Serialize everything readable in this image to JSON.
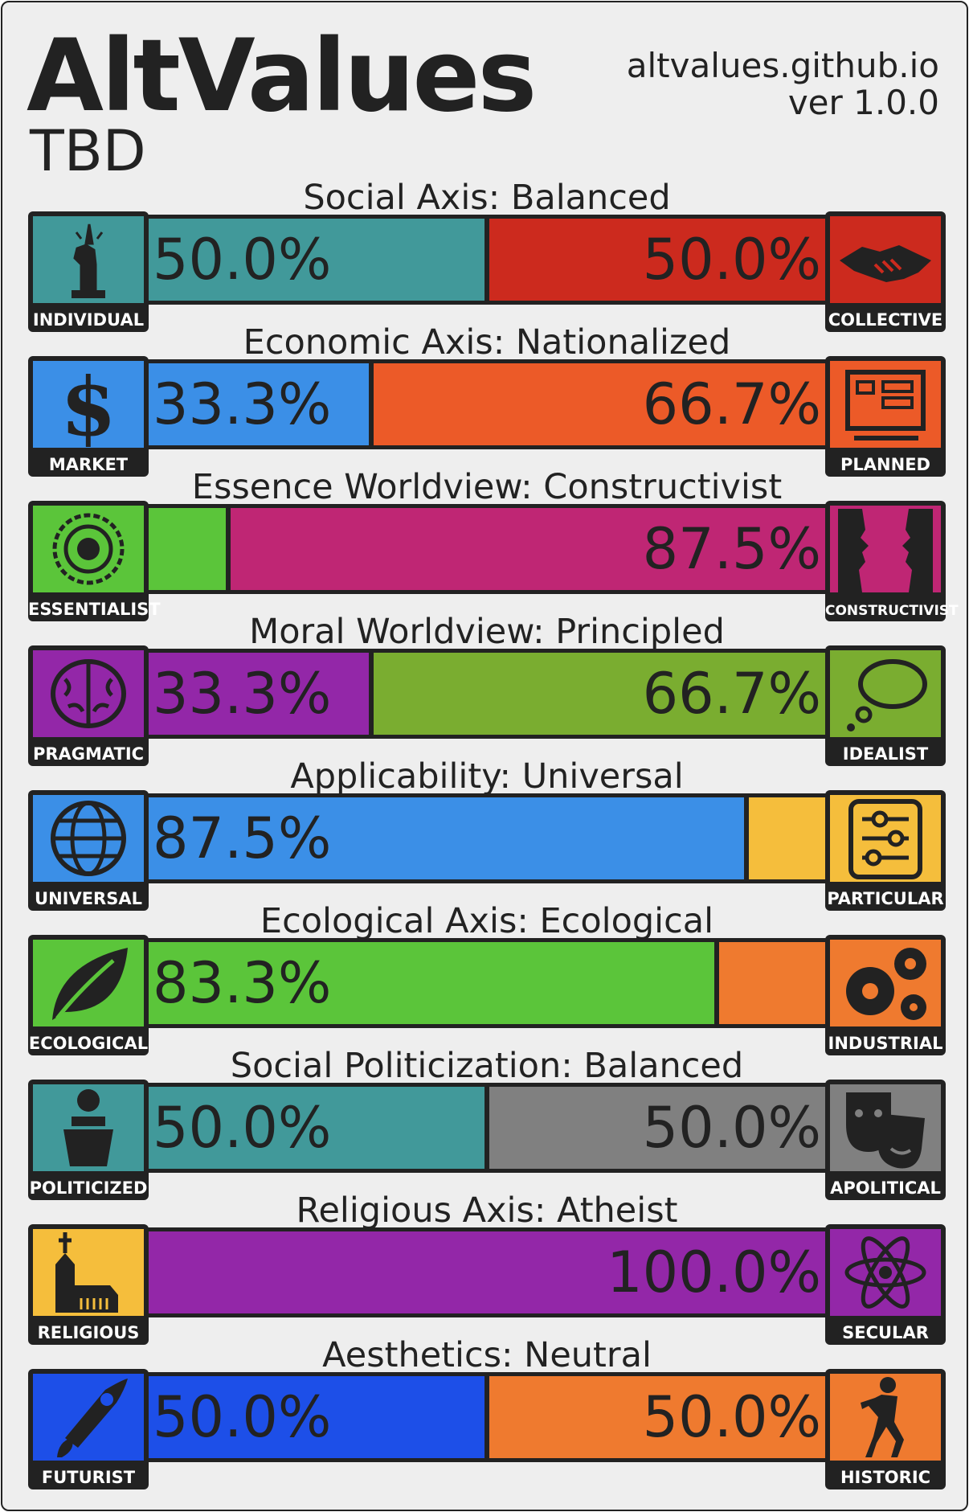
{
  "header": {
    "title": "AltValues",
    "subtitle": "TBD",
    "site": "altvalues.github.io",
    "version": "ver 1.0.0"
  },
  "chart_data": {
    "type": "bar",
    "axes": [
      {
        "label": "Social Axis: Balanced",
        "left": {
          "name": "INDIVIDUAL",
          "value": 50.0,
          "text": "50.0%",
          "color": "#41999a",
          "icon": "statue-of-liberty-icon"
        },
        "right": {
          "name": "COLLECTIVE",
          "value": 50.0,
          "text": "50.0%",
          "color": "#cc2a1e",
          "icon": "handshake-icon"
        }
      },
      {
        "label": "Economic Axis: Nationalized",
        "left": {
          "name": "MARKET",
          "value": 33.3,
          "text": "33.3%",
          "color": "#3b8fe7",
          "icon": "dollar-icon"
        },
        "right": {
          "name": "PLANNED",
          "value": 66.7,
          "text": "66.7%",
          "color": "#ec5a28",
          "icon": "blueprint-icon"
        }
      },
      {
        "label": "Essence Worldview: Constructivist",
        "left": {
          "name": "ESSENTIALIST",
          "value": 12.5,
          "text": "",
          "color": "#5bc53a",
          "icon": "mandala-icon"
        },
        "right": {
          "name": "CONSTRUCTIVIST",
          "value": 87.5,
          "text": "87.5%",
          "color": "#bf2674",
          "icon": "faces-vase-icon"
        }
      },
      {
        "label": "Moral Worldview: Principled",
        "left": {
          "name": "PRAGMATIC",
          "value": 33.3,
          "text": "33.3%",
          "color": "#9327a8",
          "icon": "brain-icon"
        },
        "right": {
          "name": "IDEALIST",
          "value": 66.7,
          "text": "66.7%",
          "color": "#7aad30",
          "icon": "thought-bubble-icon"
        }
      },
      {
        "label": "Applicability: Universal",
        "left": {
          "name": "UNIVERSAL",
          "value": 87.5,
          "text": "87.5%",
          "color": "#3b8fe7",
          "icon": "globe-icon"
        },
        "right": {
          "name": "PARTICULAR",
          "value": 12.5,
          "text": "",
          "color": "#f5be3c",
          "icon": "sliders-icon"
        }
      },
      {
        "label": "Ecological Axis: Ecological",
        "left": {
          "name": "ECOLOGICAL",
          "value": 83.3,
          "text": "83.3%",
          "color": "#5bc53a",
          "icon": "leaf-icon"
        },
        "right": {
          "name": "INDUSTRIAL",
          "value": 16.7,
          "text": "",
          "color": "#ef7a2f",
          "icon": "gears-icon"
        }
      },
      {
        "label": "Social Politicization: Balanced",
        "left": {
          "name": "POLITICIZED",
          "value": 50.0,
          "text": "50.0%",
          "color": "#41999a",
          "icon": "podium-icon"
        },
        "right": {
          "name": "APOLITICAL",
          "value": 50.0,
          "text": "50.0%",
          "color": "#808080",
          "icon": "theater-masks-icon"
        }
      },
      {
        "label": "Religious Axis: Atheist",
        "left": {
          "name": "RELIGIOUS",
          "value": 0.0,
          "text": "",
          "color": "#f5be3c",
          "icon": "church-icon"
        },
        "right": {
          "name": "SECULAR",
          "value": 100.0,
          "text": "100.0%",
          "color": "#9327a8",
          "icon": "atom-icon"
        }
      },
      {
        "label": "Aesthetics: Neutral",
        "left": {
          "name": "FUTURIST",
          "value": 50.0,
          "text": "50.0%",
          "color": "#1d4fe8",
          "icon": "rocket-icon"
        },
        "right": {
          "name": "HISTORIC",
          "value": 50.0,
          "text": "50.0%",
          "color": "#ef7a2f",
          "icon": "discobolus-icon"
        }
      }
    ]
  }
}
